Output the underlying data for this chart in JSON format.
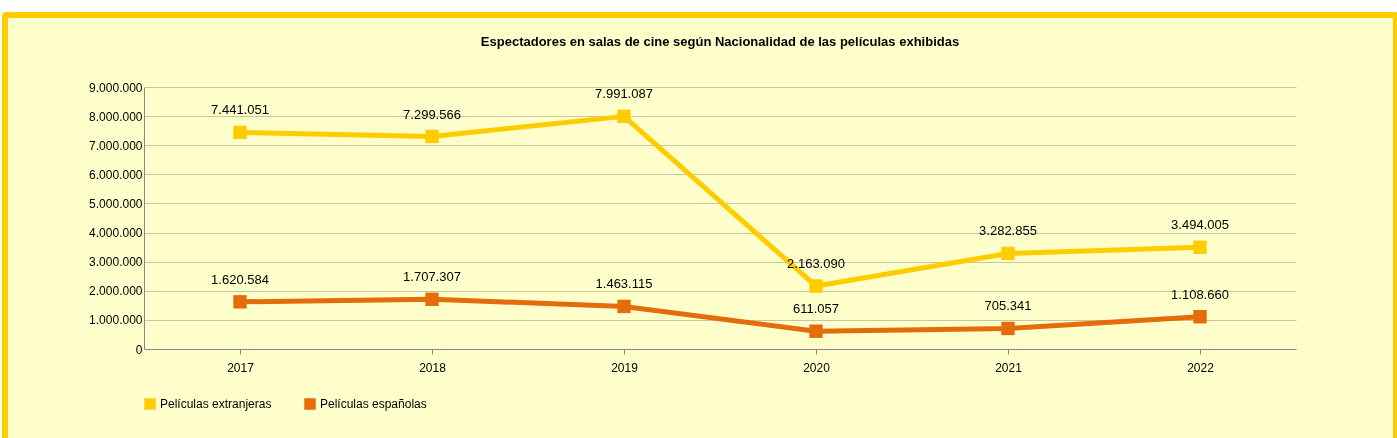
{
  "chart_data": {
    "type": "line",
    "title": "Espectadores en salas de cine según Nacionalidad de las películas exhibidas",
    "categories": [
      "2017",
      "2018",
      "2019",
      "2020",
      "2021",
      "2022"
    ],
    "series": [
      {
        "name": "Películas extranjeras",
        "color": "#ffcc00",
        "values": [
          7441051,
          7299566,
          7991087,
          2163090,
          3282855,
          3494005
        ],
        "value_labels": [
          "7.441.051",
          "7.299.566",
          "7.991.087",
          "2.163.090",
          "3.282.855",
          "3.494.005"
        ]
      },
      {
        "name": "Películas españolas",
        "color": "#e46c0a",
        "values": [
          1620584,
          1707307,
          1463115,
          611057,
          705341,
          1108660
        ],
        "value_labels": [
          "1.620.584",
          "1.707.307",
          "1.463.115",
          "611.057",
          "705.341",
          "1.108.660"
        ]
      }
    ],
    "ylim": [
      0,
      9000000
    ],
    "yticks": [
      0,
      {
        "value": 1000000,
        "label": "1.000.000"
      },
      {
        "value": 2000000,
        "label": "2.000.000"
      },
      {
        "value": 3000000,
        "label": "3.000.000"
      },
      {
        "value": 4000000,
        "label": "4.000.000"
      },
      {
        "value": 5000000,
        "label": "5.000.000"
      },
      {
        "value": 6000000,
        "label": "6.000.000"
      },
      {
        "value": 7000000,
        "label": "7.000.000"
      },
      {
        "value": 8000000,
        "label": "8.000.000"
      },
      {
        "value": 9000000,
        "label": "9.000.000"
      }
    ],
    "grid": "y",
    "legend": "bottom",
    "marker": "square",
    "line_style": "solid"
  }
}
